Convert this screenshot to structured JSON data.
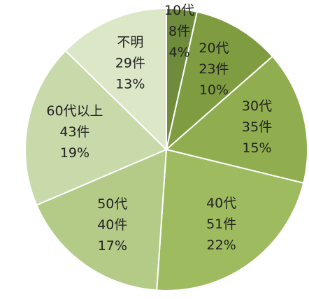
{
  "chart_data": {
    "type": "pie",
    "categories": [
      "10代",
      "20代",
      "30代",
      "40代",
      "50代",
      "60代以上",
      "不明"
    ],
    "values": [
      8,
      23,
      35,
      51,
      40,
      43,
      29
    ],
    "value_labels": [
      "8件",
      "23件",
      "35件",
      "51件",
      "40件",
      "43件",
      "29件"
    ],
    "percentages": [
      4,
      10,
      15,
      22,
      17,
      19,
      13
    ],
    "percentage_labels": [
      "4%",
      "10%",
      "15%",
      "22%",
      "17%",
      "19%",
      "13%"
    ],
    "colors": [
      "#6e8c3c",
      "#7f9d40",
      "#90ad4f",
      "#9ebb5f",
      "#b4cb88",
      "#c8d9aa",
      "#dce7c8"
    ]
  }
}
